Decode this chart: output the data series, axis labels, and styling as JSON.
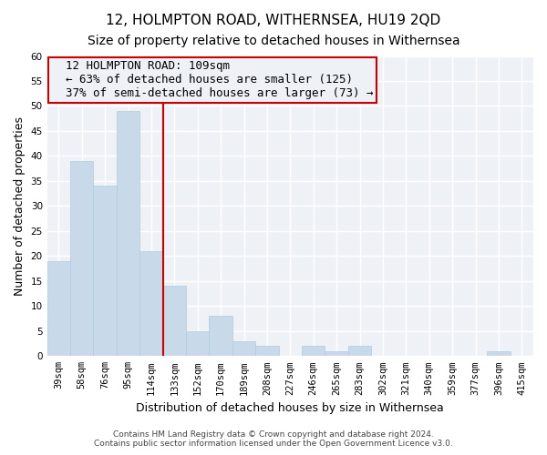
{
  "title": "12, HOLMPTON ROAD, WITHERNSEA, HU19 2QD",
  "subtitle": "Size of property relative to detached houses in Withernsea",
  "xlabel": "Distribution of detached houses by size in Withernsea",
  "ylabel": "Number of detached properties",
  "categories": [
    "39sqm",
    "58sqm",
    "76sqm",
    "95sqm",
    "114sqm",
    "133sqm",
    "152sqm",
    "170sqm",
    "189sqm",
    "208sqm",
    "227sqm",
    "246sqm",
    "265sqm",
    "283sqm",
    "302sqm",
    "321sqm",
    "340sqm",
    "359sqm",
    "377sqm",
    "396sqm",
    "415sqm"
  ],
  "values": [
    19,
    39,
    34,
    49,
    21,
    14,
    5,
    8,
    3,
    2,
    0,
    2,
    1,
    2,
    0,
    0,
    0,
    0,
    0,
    1,
    0
  ],
  "bar_color": "#c8daea",
  "bar_edge_color": "#b0cce0",
  "ylim": [
    0,
    60
  ],
  "yticks": [
    0,
    5,
    10,
    15,
    20,
    25,
    30,
    35,
    40,
    45,
    50,
    55,
    60
  ],
  "property_label": "12 HOLMPTON ROAD: 109sqm",
  "pct_smaller": 63,
  "n_smaller": 125,
  "pct_larger": 37,
  "n_larger": 73,
  "vline_x": 4.5,
  "footer": "Contains HM Land Registry data © Crown copyright and database right 2024.\nContains public sector information licensed under the Open Government Licence v3.0.",
  "title_fontsize": 11,
  "subtitle_fontsize": 10,
  "axis_label_fontsize": 9,
  "tick_fontsize": 7.5,
  "annotation_fontsize": 9,
  "background_color": "#ffffff",
  "plot_bg_color": "#eef2f7",
  "grid_color": "#ffffff",
  "vline_color": "#cc0000"
}
